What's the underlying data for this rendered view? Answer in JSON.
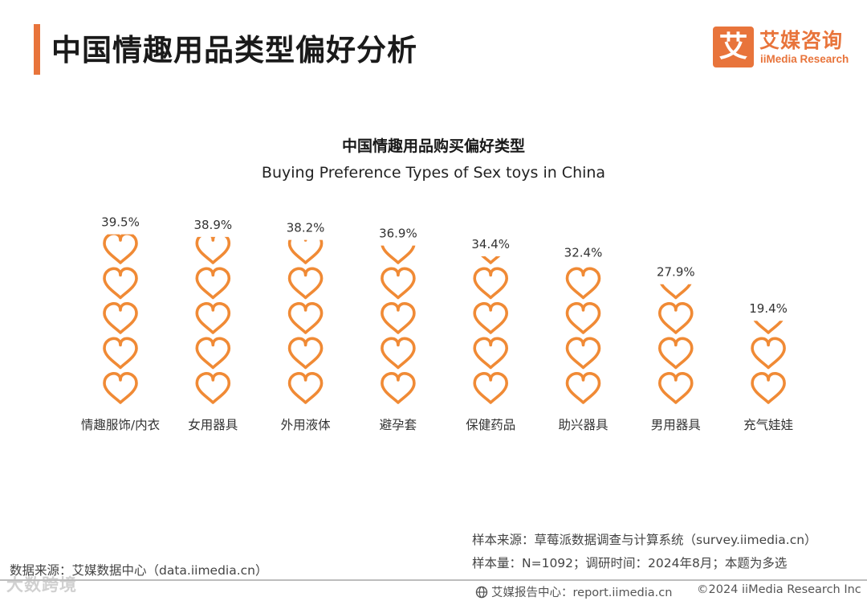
{
  "header": {
    "title": "中国情趣用品类型偏好分析",
    "logo_mark": "艾",
    "logo_cn": "艾媒咨询",
    "logo_en": "iiMedia Research"
  },
  "colors": {
    "accent": "#E8743B",
    "heart": "#F08A35",
    "text": "#222222"
  },
  "chart_data": {
    "type": "bar",
    "title": "中国情趣用品购买偏好类型",
    "subtitle": "Buying Preference Types of Sex toys in China",
    "categories": [
      "情趣服饰/内衣",
      "女用器具",
      "外用液体",
      "避孕套",
      "保健药品",
      "助兴器具",
      "男用器具",
      "充气娃娃"
    ],
    "values": [
      39.5,
      38.9,
      38.2,
      36.9,
      34.4,
      32.4,
      27.9,
      19.4
    ],
    "value_labels": [
      "39.5%",
      "38.9%",
      "38.2%",
      "36.9%",
      "34.4%",
      "32.4%",
      "27.9%",
      "19.4%"
    ],
    "unit": "%",
    "ylim": [
      0,
      40
    ],
    "icons_per_column": 5,
    "icon": "heart-outline-icon",
    "grid": false,
    "legend": "none"
  },
  "notes": {
    "sample_source": "样本来源：草莓派数据调查与计算系统（survey.iimedia.cn）",
    "sample_size": "样本量：N=1092；调研时间：2024年8月；本题为多选"
  },
  "footer": {
    "data_source": "数据来源：艾媒数据中心（data.iimedia.cn）",
    "report_center": "艾媒报告中心：report.iimedia.cn",
    "copyright": "©2024  iiMedia Research Inc",
    "watermark": "大数跨境"
  }
}
